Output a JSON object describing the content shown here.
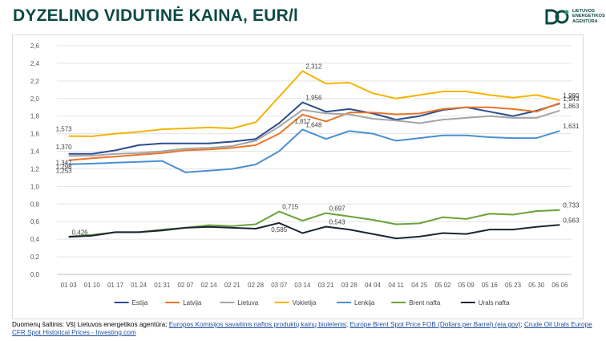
{
  "header": {
    "title": "DYZELINO VIDUTINĖ KAINA, EUR/l",
    "logo_lines": [
      "LIETUVOS",
      "ENERGETIKOS",
      "AGENTŪRA"
    ]
  },
  "source": {
    "prefix": "Duomenų šaltinis: VšĮ Lietuvos energetikos agentūra;",
    "link1": "Europos Komisijos savaitinis naftos produktų kainų biuletenis",
    "sep1": ";",
    "link2": "Europe Brent Spot Price FOB (Dollars per Barrel) (eia.gov)",
    "sep2": ";",
    "link3": "Crude Oil Urals Europe CFR Spot Historical Prices - Investing.com"
  },
  "colors": {
    "Estija": "#2e4d8f",
    "Latvija": "#e8752a",
    "Lietuva": "#a5a5a5",
    "Vokietija": "#f6b400",
    "Lenkija": "#4a8fd2",
    "Brent nafta": "#6aa336",
    "Urals nafta": "#1c2535",
    "accent": "#0d4a45",
    "link": "#1f4e9a"
  },
  "chart_data": {
    "type": "line",
    "title": "",
    "xlabel": "",
    "ylabel": "",
    "ylim": [
      0,
      2.6
    ],
    "y_ticks": [
      "0,0",
      "0,2",
      "0,4",
      "0,6",
      "0,8",
      "1,0",
      "1,2",
      "1,4",
      "1,6",
      "1,8",
      "2,0",
      "2,2",
      "2,4",
      "2,6"
    ],
    "grid": true,
    "legend_position": "bottom",
    "categories": [
      "01 03",
      "01 10",
      "01 17",
      "01 24",
      "01 31",
      "02 07",
      "02 14",
      "02 21",
      "02 28",
      "03 07",
      "03 14",
      "03 21",
      "03 28",
      "04 04",
      "04 11",
      "04 25",
      "05 02",
      "05 09",
      "05 16",
      "05 23",
      "05 30",
      "06 06"
    ],
    "series": [
      {
        "name": "Estija",
        "values": [
          1.37,
          1.37,
          1.41,
          1.47,
          1.49,
          1.49,
          1.49,
          1.51,
          1.54,
          1.72,
          1.956,
          1.85,
          1.88,
          1.83,
          1.76,
          1.8,
          1.87,
          1.9,
          1.85,
          1.8,
          1.86,
          1.943
        ]
      },
      {
        "name": "Latvija",
        "values": [
          1.298,
          1.32,
          1.34,
          1.36,
          1.38,
          1.41,
          1.42,
          1.44,
          1.47,
          1.6,
          1.817,
          1.74,
          1.84,
          1.84,
          1.82,
          1.83,
          1.88,
          1.9,
          1.9,
          1.88,
          1.85,
          1.95
        ]
      },
      {
        "name": "Lietuva",
        "values": [
          1.347,
          1.35,
          1.37,
          1.38,
          1.4,
          1.43,
          1.44,
          1.46,
          1.52,
          1.68,
          1.87,
          1.83,
          1.82,
          1.77,
          1.75,
          1.72,
          1.76,
          1.78,
          1.8,
          1.78,
          1.78,
          1.863
        ]
      },
      {
        "name": "Vokietija",
        "values": [
          1.573,
          1.57,
          1.6,
          1.62,
          1.65,
          1.66,
          1.67,
          1.66,
          1.73,
          2.02,
          2.312,
          2.17,
          2.18,
          2.06,
          2.0,
          2.04,
          2.08,
          2.08,
          2.04,
          2.01,
          2.04,
          1.98
        ]
      },
      {
        "name": "Lenkija",
        "values": [
          1.253,
          1.26,
          1.27,
          1.28,
          1.29,
          1.16,
          1.18,
          1.2,
          1.25,
          1.4,
          1.648,
          1.54,
          1.63,
          1.6,
          1.52,
          1.55,
          1.58,
          1.58,
          1.56,
          1.55,
          1.55,
          1.631
        ]
      },
      {
        "name": "Brent nafta",
        "values": [
          0.43,
          0.45,
          0.48,
          0.48,
          0.51,
          0.53,
          0.56,
          0.55,
          0.57,
          0.715,
          0.61,
          0.697,
          0.66,
          0.62,
          0.57,
          0.58,
          0.65,
          0.63,
          0.69,
          0.68,
          0.72,
          0.733
        ]
      },
      {
        "name": "Urals nafta",
        "values": [
          0.426,
          0.44,
          0.48,
          0.48,
          0.5,
          0.53,
          0.54,
          0.53,
          0.52,
          0.585,
          0.47,
          0.543,
          0.51,
          0.46,
          0.41,
          0.43,
          0.47,
          0.46,
          0.51,
          0.51,
          0.54,
          0.563
        ]
      }
    ],
    "annotations": [
      {
        "series": "Estija",
        "index": 0,
        "text": "1,370",
        "pos": "above"
      },
      {
        "series": "Lietuva",
        "index": 0,
        "text": "1,347",
        "pos": "below"
      },
      {
        "series": "Latvija",
        "index": 0,
        "text": "1,298",
        "pos": "below"
      },
      {
        "series": "Lenkija",
        "index": 0,
        "text": "1,253",
        "pos": "below"
      },
      {
        "series": "Vokietija",
        "index": 0,
        "text": "1,573",
        "pos": "above"
      },
      {
        "series": "Urals nafta",
        "index": 0,
        "text": "0,426",
        "pos": "right"
      },
      {
        "series": "Vokietija",
        "index": 10,
        "text": "2,312",
        "pos": "right"
      },
      {
        "series": "Estija",
        "index": 10,
        "text": "1,956",
        "pos": "right"
      },
      {
        "series": "Latvija",
        "index": 10,
        "text": "1,817",
        "pos": "below"
      },
      {
        "series": "Lenkija",
        "index": 10,
        "text": "1,648",
        "pos": "right"
      },
      {
        "series": "Brent nafta",
        "index": 9,
        "text": "0,715",
        "pos": "right"
      },
      {
        "series": "Urals nafta",
        "index": 9,
        "text": "0,585",
        "pos": "below"
      },
      {
        "series": "Brent nafta",
        "index": 11,
        "text": "0,697",
        "pos": "right"
      },
      {
        "series": "Urals nafta",
        "index": 11,
        "text": "0,543",
        "pos": "right"
      },
      {
        "series": "Vokietija",
        "index": 21,
        "text": "1,980",
        "pos": "right"
      },
      {
        "series": "Estija",
        "index": 21,
        "text": "1,943",
        "pos": "right"
      },
      {
        "series": "Lietuva",
        "index": 21,
        "text": "1,863",
        "pos": "right"
      },
      {
        "series": "Lenkija",
        "index": 21,
        "text": "1,631",
        "pos": "right"
      },
      {
        "series": "Brent nafta",
        "index": 21,
        "text": "0,733",
        "pos": "right"
      },
      {
        "series": "Urals nafta",
        "index": 21,
        "text": "0,563",
        "pos": "right"
      }
    ]
  }
}
